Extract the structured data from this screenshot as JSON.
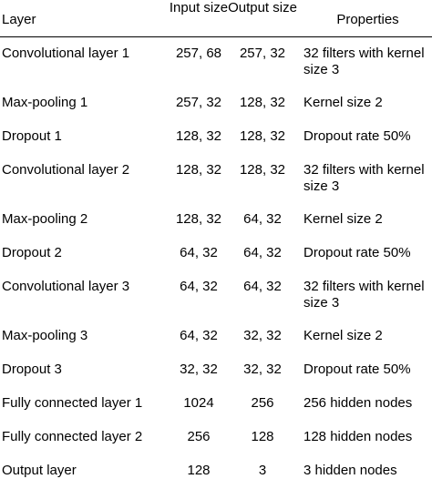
{
  "table": {
    "headers": {
      "layer": "Layer",
      "input": "Input size",
      "output": "Output size",
      "properties": "Properties"
    },
    "rows": [
      {
        "layer": "Convolutional layer 1",
        "input": "257, 68",
        "output": "257, 32",
        "properties": "32 filters with kernel size 3"
      },
      {
        "layer": "Max-pooling 1",
        "input": "257, 32",
        "output": "128, 32",
        "properties": "Kernel size 2"
      },
      {
        "layer": "Dropout 1",
        "input": "128, 32",
        "output": "128, 32",
        "properties": "Dropout rate 50%"
      },
      {
        "layer": "Convolutional layer 2",
        "input": "128, 32",
        "output": "128, 32",
        "properties": "32 filters with kernel size 3"
      },
      {
        "layer": "Max-pooling 2",
        "input": "128, 32",
        "output": "64, 32",
        "properties": "Kernel size 2"
      },
      {
        "layer": "Dropout 2",
        "input": "64, 32",
        "output": "64, 32",
        "properties": "Dropout rate 50%"
      },
      {
        "layer": "Convolutional layer 3",
        "input": "64, 32",
        "output": "64, 32",
        "properties": "32 filters with kernel size 3"
      },
      {
        "layer": "Max-pooling 3",
        "input": "64, 32",
        "output": "32, 32",
        "properties": "Kernel size 2"
      },
      {
        "layer": "Dropout 3",
        "input": "32, 32",
        "output": "32, 32",
        "properties": "Dropout rate 50%"
      },
      {
        "layer": "Fully connected layer 1",
        "input": "1024",
        "output": "256",
        "properties": "256 hidden nodes"
      },
      {
        "layer": "Fully connected layer 2",
        "input": "256",
        "output": "128",
        "properties": "128 hidden nodes"
      },
      {
        "layer": "Output layer",
        "input": "128",
        "output": "3",
        "properties": "3 hidden nodes"
      }
    ]
  }
}
